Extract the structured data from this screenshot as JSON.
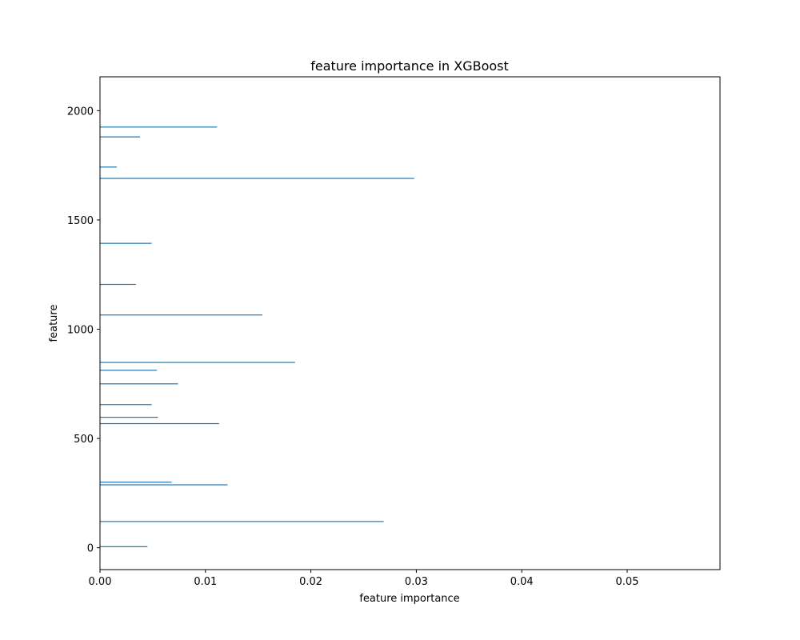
{
  "chart_data": {
    "type": "bar",
    "orientation": "horizontal",
    "title": "feature importance in XGBoost",
    "xlabel": "feature importance",
    "ylabel": "feature",
    "xlim": [
      0,
      0.0588
    ],
    "ylim": [
      -100,
      2155
    ],
    "xticks": [
      0.0,
      0.01,
      0.02,
      0.03,
      0.04,
      0.05
    ],
    "xtick_labels": [
      "0.00",
      "0.01",
      "0.02",
      "0.03",
      "0.04",
      "0.05"
    ],
    "yticks": [
      0,
      500,
      1000,
      1500,
      2000
    ],
    "ytick_labels": [
      "0",
      "500",
      "1000",
      "1500",
      "2000"
    ],
    "grid": false,
    "bar_color": "#1f77b4",
    "bars": [
      {
        "feature": 5,
        "importance": 0.0045
      },
      {
        "feature": 120,
        "importance": 0.0269
      },
      {
        "feature": 288,
        "importance": 0.0121
      },
      {
        "feature": 300,
        "importance": 0.0068
      },
      {
        "feature": 568,
        "importance": 0.0113
      },
      {
        "feature": 597,
        "importance": 0.0055
      },
      {
        "feature": 655,
        "importance": 0.0049
      },
      {
        "feature": 750,
        "importance": 0.0074
      },
      {
        "feature": 812,
        "importance": 0.0054
      },
      {
        "feature": 848,
        "importance": 0.0185
      },
      {
        "feature": 1065,
        "importance": 0.0154
      },
      {
        "feature": 1205,
        "importance": 0.0034
      },
      {
        "feature": 1393,
        "importance": 0.0049
      },
      {
        "feature": 1690,
        "importance": 0.0298
      },
      {
        "feature": 1742,
        "importance": 0.0016
      },
      {
        "feature": 1880,
        "importance": 0.0038
      },
      {
        "feature": 1925,
        "importance": 0.0111
      }
    ]
  }
}
